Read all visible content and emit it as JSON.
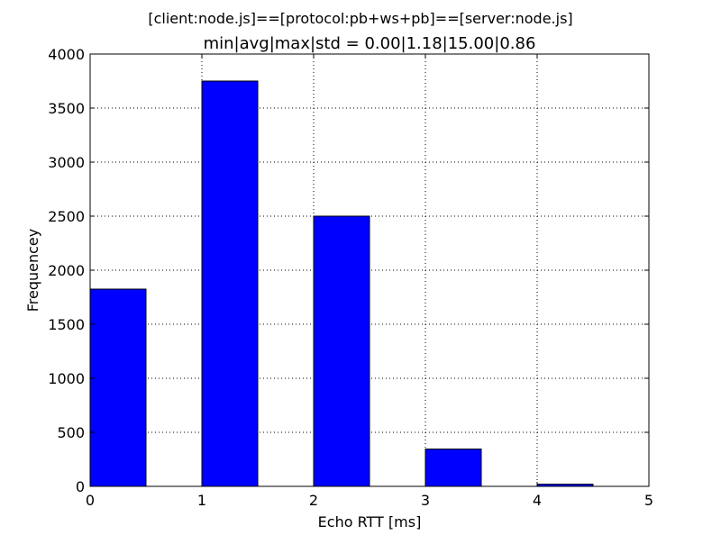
{
  "chart_data": {
    "type": "bar",
    "suptitle": "[client:node.js]==[protocol:pb+ws+pb]==[server:node.js]",
    "title": "min|avg|max|std = 0.00|1.18|15.00|0.86",
    "xlabel": "Echo RTT [ms]",
    "ylabel": "Frequencey",
    "xlim": [
      0,
      5
    ],
    "ylim": [
      0,
      4000
    ],
    "xticks": [
      0,
      1,
      2,
      3,
      4,
      5
    ],
    "yticks": [
      0,
      500,
      1000,
      1500,
      2000,
      2500,
      3000,
      3500,
      4000
    ],
    "grid": true,
    "bar_width": 0.5,
    "bar_color": "#0000ff",
    "bars": [
      {
        "x": 0.0,
        "value": 1825
      },
      {
        "x": 1.0,
        "value": 3750
      },
      {
        "x": 2.0,
        "value": 2500
      },
      {
        "x": 3.0,
        "value": 345
      },
      {
        "x": 4.0,
        "value": 20
      }
    ]
  }
}
